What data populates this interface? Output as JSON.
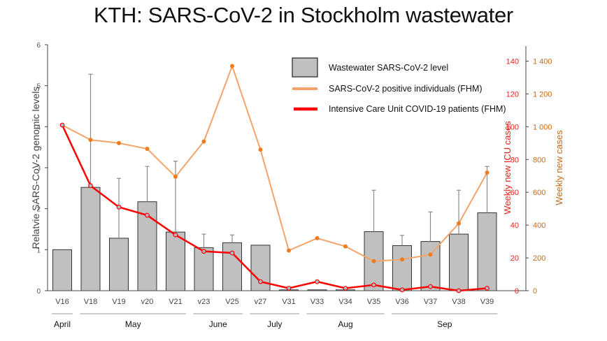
{
  "title": "KTH: SARS-CoV-2 in Stockholm wastewater",
  "chart_data": {
    "type": "bar+line",
    "title": "KTH: SARS-CoV-2 in Stockholm wastewater",
    "categories": [
      "V16",
      "V18",
      "V19",
      "v20",
      "V21",
      "v23",
      "V25",
      "v27",
      "V31",
      "V33",
      "V34",
      "V35",
      "V36",
      "V37",
      "V38",
      "V39"
    ],
    "months": [
      {
        "label": "April",
        "from": 0,
        "to": 0
      },
      {
        "label": "May",
        "from": 1,
        "to": 4
      },
      {
        "label": "June",
        "from": 5,
        "to": 6
      },
      {
        "label": "July",
        "from": 7,
        "to": 8
      },
      {
        "label": "Aug",
        "from": 9,
        "to": 11
      },
      {
        "label": "Sep",
        "from": 12,
        "to": 15
      }
    ],
    "left_axis": {
      "label": "Relatvie SARS-CoV-2 genomic levels",
      "range": [
        0,
        6
      ],
      "ticks": [
        "0",
        "1",
        "2",
        "3",
        "4",
        "5",
        "6"
      ]
    },
    "right_axis_icu": {
      "label": "Weekly new ICU cases",
      "range": [
        0,
        150
      ],
      "ticks": [
        "0",
        "20",
        "40",
        "60",
        "80",
        "100",
        "120",
        "140"
      ],
      "color": "#e8211c"
    },
    "right_axis_cases": {
      "label": "Weekly new cases",
      "range": [
        0,
        1500
      ],
      "ticks": [
        "0",
        "200",
        "400",
        "600",
        "800",
        "1 000",
        "1 200",
        "1 400"
      ],
      "color": "#c66a1a"
    },
    "series": [
      {
        "name": "Wastewater SARS-CoV-2 level",
        "type": "bar",
        "axis": "left",
        "color": "#c0c0c0",
        "values": [
          1.0,
          2.52,
          1.28,
          2.17,
          1.43,
          1.05,
          1.17,
          1.11,
          0.02,
          0.02,
          0.02,
          1.44,
          1.1,
          1.2,
          1.38,
          1.9
        ],
        "error_upper": [
          null,
          5.28,
          2.74,
          3.03,
          3.16,
          1.38,
          1.36,
          null,
          null,
          null,
          null,
          2.45,
          1.35,
          1.92,
          2.45,
          3.03
        ]
      },
      {
        "name": "SARS-CoV-2 positive individuals (FHM)",
        "type": "line",
        "axis": "right_cases",
        "color": "#f4a46a",
        "marker_color": "#ee7c20",
        "values": [
          1010,
          920,
          900,
          865,
          695,
          910,
          1370,
          860,
          245,
          320,
          270,
          180,
          190,
          220,
          410,
          720
        ]
      },
      {
        "name": "Intensive Care Unit COVID-19 patients (FHM)",
        "type": "line",
        "axis": "right_icu",
        "color": "#ff0000",
        "values": [
          101,
          64,
          51,
          46,
          34,
          24,
          23,
          5.5,
          1.5,
          5.5,
          1.5,
          3.5,
          0.5,
          2.5,
          0,
          1.5
        ]
      }
    ],
    "legend": {
      "position": "top-right",
      "entries": [
        "Wastewater SARS-CoV-2 level",
        "SARS-CoV-2 positive individuals (FHM)",
        "Intensive Care Unit COVID-19 patients (FHM)"
      ]
    },
    "grid": false
  }
}
